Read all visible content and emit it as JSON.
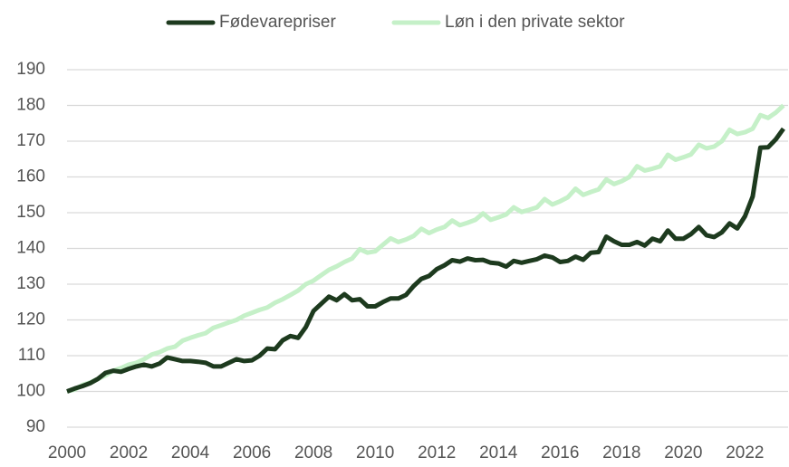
{
  "chart_data": {
    "type": "line",
    "x": [
      2000,
      2000.25,
      2000.5,
      2000.75,
      2001,
      2001.25,
      2001.5,
      2001.75,
      2002,
      2002.25,
      2002.5,
      2002.75,
      2003,
      2003.25,
      2003.5,
      2003.75,
      2004,
      2004.25,
      2004.5,
      2004.75,
      2005,
      2005.25,
      2005.5,
      2005.75,
      2006,
      2006.25,
      2006.5,
      2006.75,
      2007,
      2007.25,
      2007.5,
      2007.75,
      2008,
      2008.25,
      2008.5,
      2008.75,
      2009,
      2009.25,
      2009.5,
      2009.75,
      2010,
      2010.25,
      2010.5,
      2010.75,
      2011,
      2011.25,
      2011.5,
      2011.75,
      2012,
      2012.25,
      2012.5,
      2012.75,
      2013,
      2013.25,
      2013.5,
      2013.75,
      2014,
      2014.25,
      2014.5,
      2014.75,
      2015,
      2015.25,
      2015.5,
      2015.75,
      2016,
      2016.25,
      2016.5,
      2016.75,
      2017,
      2017.25,
      2017.5,
      2017.75,
      2018,
      2018.25,
      2018.5,
      2018.75,
      2019,
      2019.25,
      2019.5,
      2019.75,
      2020,
      2020.25,
      2020.5,
      2020.75,
      2021,
      2021.25,
      2021.5,
      2021.75,
      2022,
      2022.25,
      2022.5,
      2022.75,
      2023,
      2023.25
    ],
    "series": [
      {
        "name": "Fødevarepriser",
        "color": "#1d3a1e",
        "values": [
          100,
          100.8,
          101.5,
          102.3,
          103.5,
          105.2,
          105.8,
          105.5,
          106.3,
          107,
          107.5,
          107,
          107.8,
          109.5,
          109,
          108.5,
          108.5,
          108.3,
          108,
          107,
          107,
          108,
          109,
          108.5,
          108.7,
          110,
          112,
          111.8,
          114.3,
          115.5,
          115,
          118,
          122.5,
          124.5,
          126.5,
          125.5,
          127.2,
          125.5,
          125.8,
          123.8,
          123.8,
          125,
          126,
          126,
          127,
          129.5,
          131.5,
          132.3,
          134.2,
          135.3,
          136.7,
          136.3,
          137.2,
          136.7,
          136.8,
          136,
          135.8,
          134.9,
          136.5,
          136,
          136.5,
          137,
          138,
          137.5,
          136.2,
          136.5,
          137.7,
          136.8,
          138.8,
          139,
          143.3,
          142,
          141,
          141,
          141.8,
          140.8,
          142.7,
          142,
          145,
          142.7,
          142.7,
          144,
          146,
          143.7,
          143.2,
          144.5,
          147,
          145.6,
          149,
          154.5,
          168.2,
          168.3,
          170.5,
          173.5
        ]
      },
      {
        "name": "Løn i den private sektor",
        "color": "#c5f0c8",
        "values": [
          100,
          100.5,
          101.8,
          102.5,
          103.5,
          104.5,
          105.8,
          106.5,
          107.5,
          108,
          109,
          110.3,
          111,
          112,
          112.5,
          114.2,
          115,
          115.7,
          116.3,
          117.8,
          118.5,
          119.3,
          120,
          121.2,
          122,
          122.8,
          123.5,
          124.8,
          125.8,
          127,
          128.2,
          130,
          131,
          132.5,
          134,
          135,
          136.2,
          137.2,
          139.8,
          138.8,
          139.2,
          141,
          142.8,
          141.8,
          142.5,
          143.5,
          145.5,
          144.3,
          145.3,
          146,
          147.8,
          146.5,
          147.2,
          148,
          149.8,
          148,
          148.7,
          149.5,
          151.5,
          150.2,
          150.8,
          151.5,
          153.8,
          152.3,
          153.2,
          154.3,
          156.7,
          155,
          155.8,
          156.5,
          159.3,
          158,
          158.8,
          160,
          163,
          161.8,
          162.3,
          163,
          166.2,
          164.8,
          165.5,
          166.3,
          169,
          168,
          168.5,
          170,
          173.2,
          172,
          172.5,
          173.5,
          177.3,
          176.5,
          178,
          180
        ]
      }
    ],
    "xlim": [
      2000,
      2023.4
    ],
    "xticks": [
      2000,
      2002,
      2004,
      2006,
      2008,
      2010,
      2012,
      2014,
      2016,
      2018,
      2020,
      2022
    ],
    "ylim": [
      90,
      190
    ],
    "yticks": [
      90,
      100,
      110,
      120,
      130,
      140,
      150,
      160,
      170,
      180,
      190
    ],
    "grid": true,
    "legend": "top"
  }
}
